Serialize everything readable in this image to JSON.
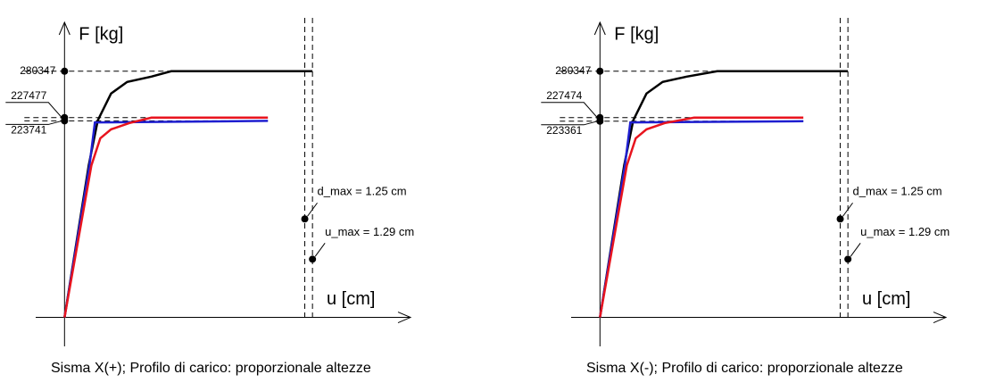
{
  "chart_data": [
    {
      "type": "line",
      "ylabel": "F [kg]",
      "xlabel": "u [cm]",
      "caption": "Sisma X(+); Profilo di carico: proporzionale altezze",
      "xlim": [
        -0.15,
        1.8
      ],
      "ylim": [
        -33000,
        336000
      ],
      "series": [
        {
          "color": "#000000",
          "x": [
            0,
            0.126,
            0.173,
            0.242,
            0.326,
            0.452,
            0.555,
            1.29
          ],
          "values": [
            0,
            173300,
            224300,
            254900,
            268100,
            274200,
            280347,
            280347
          ]
        },
        {
          "color": "#1f1fd0",
          "x": [
            0,
            0.13,
            0.158,
            1.058
          ],
          "values": [
            0,
            173300,
            222000,
            223741
          ]
        },
        {
          "color": "#e8141e",
          "x": [
            0,
            0.14,
            0.186,
            0.242,
            0.336,
            0.452,
            1.058
          ],
          "values": [
            0,
            173300,
            203900,
            214100,
            221200,
            227477,
            227477
          ]
        }
      ],
      "levels": [
        280347,
        227477,
        223741
      ],
      "markers": [
        {
          "label": "d_max = 1.25 cm",
          "x": 1.25,
          "y": 112100
        },
        {
          "label": "u_max = 1.29 cm",
          "x": 1.29,
          "y": 66300
        }
      ]
    },
    {
      "type": "line",
      "ylabel": "F [kg]",
      "xlabel": "u [cm]",
      "caption": "Sisma X(-); Profilo di carico: proporzionale altezze",
      "xlim": [
        -0.15,
        1.8
      ],
      "ylim": [
        -33000,
        336000
      ],
      "series": [
        {
          "color": "#000000",
          "x": [
            0,
            0.126,
            0.173,
            0.242,
            0.326,
            0.452,
            0.61,
            1.29
          ],
          "values": [
            0,
            173300,
            224300,
            254900,
            268100,
            274200,
            280347,
            280347
          ]
        },
        {
          "color": "#1f1fd0",
          "x": [
            0,
            0.13,
            0.158,
            1.058
          ],
          "values": [
            0,
            173300,
            222000,
            223361
          ]
        },
        {
          "color": "#e8141e",
          "x": [
            0,
            0.14,
            0.186,
            0.242,
            0.336,
            0.49,
            1.058
          ],
          "values": [
            0,
            173300,
            203900,
            214100,
            221200,
            227474,
            227474
          ]
        }
      ],
      "levels": [
        280347,
        227474,
        223361
      ],
      "markers": [
        {
          "label": "d_max = 1.25 cm",
          "x": 1.25,
          "y": 112100
        },
        {
          "label": "u_max = 1.29 cm",
          "x": 1.29,
          "y": 66300
        }
      ]
    }
  ]
}
